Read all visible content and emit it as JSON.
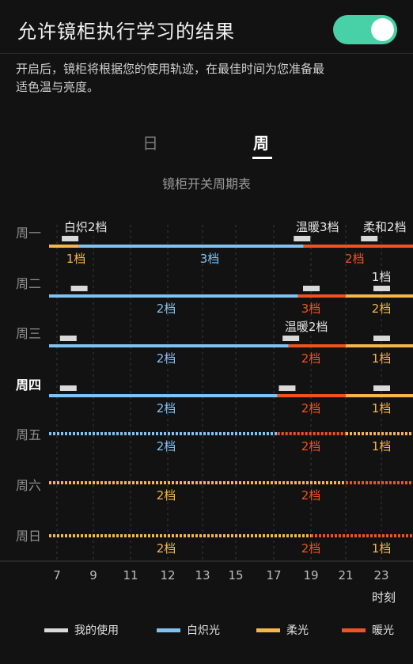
{
  "header": {
    "title": "允许镜柜执行学习的结果",
    "toggle_on": true,
    "description": "开启后，镜柜将根据您的使用轨迹，在最佳时间为您准备最适色温与亮度。"
  },
  "tabs": [
    {
      "label": "日",
      "active": false
    },
    {
      "label": "周",
      "active": true
    }
  ],
  "chart_title": "镜柜开关周期表",
  "colors": {
    "usage": "#d9d9d9",
    "incandescent": "#7fc3f5",
    "soft": "#f6b64a",
    "warm": "#f0531f",
    "accent": "#48d1a6"
  },
  "legend": [
    {
      "label": "我的使用",
      "color": "#d9d9d9"
    },
    {
      "label": "白炽光",
      "color": "#7fc3f5"
    },
    {
      "label": "柔光",
      "color": "#f6b64a"
    },
    {
      "label": "暖光",
      "color": "#f0531f"
    }
  ],
  "chart_data": {
    "type": "timeline",
    "x_ticks": [
      7,
      9,
      11,
      12,
      13,
      15,
      17,
      19,
      21,
      23
    ],
    "x_label": "时刻",
    "rows": [
      {
        "day": "周一",
        "highlight": false,
        "segments": [
          {
            "mode": "soft",
            "start": 7,
            "end": 8.2,
            "label": "1档",
            "dotted": false
          },
          {
            "mode": "incandescent",
            "start": 8.2,
            "end": 18.6,
            "label": "3档",
            "dotted": false
          },
          {
            "mode": "warm",
            "start": 18.6,
            "end": 24,
            "label": "2档",
            "dotted": false
          }
        ],
        "usage": [
          {
            "time": 7.7,
            "label": "白炽2档"
          },
          {
            "time": 18.5,
            "label": "温暖3档"
          },
          {
            "time": 22.3,
            "label": "柔和2档"
          }
        ]
      },
      {
        "day": "周二",
        "highlight": false,
        "segments": [
          {
            "mode": "incandescent",
            "start": 7,
            "end": 18.3,
            "label": "2档",
            "dotted": false
          },
          {
            "mode": "warm",
            "start": 18.3,
            "end": 21,
            "label": "3档",
            "dotted": false
          },
          {
            "mode": "soft",
            "start": 21,
            "end": 24,
            "label": "2档",
            "dotted": false
          }
        ],
        "usage": [
          {
            "time": 8.2,
            "label": ""
          },
          {
            "time": 19.0,
            "label": ""
          },
          {
            "time": 23.0,
            "label": "1档"
          }
        ]
      },
      {
        "day": "周三",
        "highlight": false,
        "segments": [
          {
            "mode": "incandescent",
            "start": 7,
            "end": 17.8,
            "label": "2档",
            "dotted": false
          },
          {
            "mode": "warm",
            "start": 17.8,
            "end": 21,
            "label": "2档",
            "dotted": false
          },
          {
            "mode": "soft",
            "start": 21,
            "end": 24,
            "label": "1档",
            "dotted": false
          }
        ],
        "usage": [
          {
            "time": 7.6,
            "label": ""
          },
          {
            "time": 17.9,
            "label": "温暖2档"
          },
          {
            "time": 23.0,
            "label": ""
          }
        ]
      },
      {
        "day": "周四",
        "highlight": true,
        "segments": [
          {
            "mode": "incandescent",
            "start": 7,
            "end": 17.2,
            "label": "2档",
            "dotted": false
          },
          {
            "mode": "warm",
            "start": 17.2,
            "end": 21,
            "label": "2档",
            "dotted": false
          },
          {
            "mode": "soft",
            "start": 21,
            "end": 24,
            "label": "1档",
            "dotted": false
          }
        ],
        "usage": [
          {
            "time": 7.6,
            "label": ""
          },
          {
            "time": 17.7,
            "label": ""
          },
          {
            "time": 23.0,
            "label": ""
          }
        ]
      },
      {
        "day": "周五",
        "highlight": false,
        "segments": [
          {
            "mode": "incandescent",
            "start": 7,
            "end": 17.2,
            "label": "2档",
            "dotted": true
          },
          {
            "mode": "warm",
            "start": 17.2,
            "end": 21,
            "label": "2档",
            "dotted": true
          },
          {
            "mode": "soft",
            "start": 21,
            "end": 24,
            "label": "1档",
            "dotted": true
          }
        ],
        "usage": []
      },
      {
        "day": "周六",
        "highlight": false,
        "segments": [
          {
            "mode": "soft",
            "start": 7,
            "end": 21,
            "label": "2档",
            "dotted": true
          },
          {
            "mode": "warm",
            "start": 21,
            "end": 24,
            "label": "2档",
            "dotted": true,
            "label_at": 19
          }
        ],
        "usage": []
      },
      {
        "day": "周日",
        "highlight": false,
        "segments": [
          {
            "mode": "soft",
            "start": 7,
            "end": 19,
            "label": "2档",
            "dotted": true
          },
          {
            "mode": "warm",
            "start": 19,
            "end": 24,
            "label": "2档",
            "dotted": true,
            "label_at": 19
          }
        ],
        "usage": [],
        "extra_labels": [
          {
            "time": 23,
            "mode": "soft",
            "label": "1档"
          }
        ]
      }
    ]
  }
}
